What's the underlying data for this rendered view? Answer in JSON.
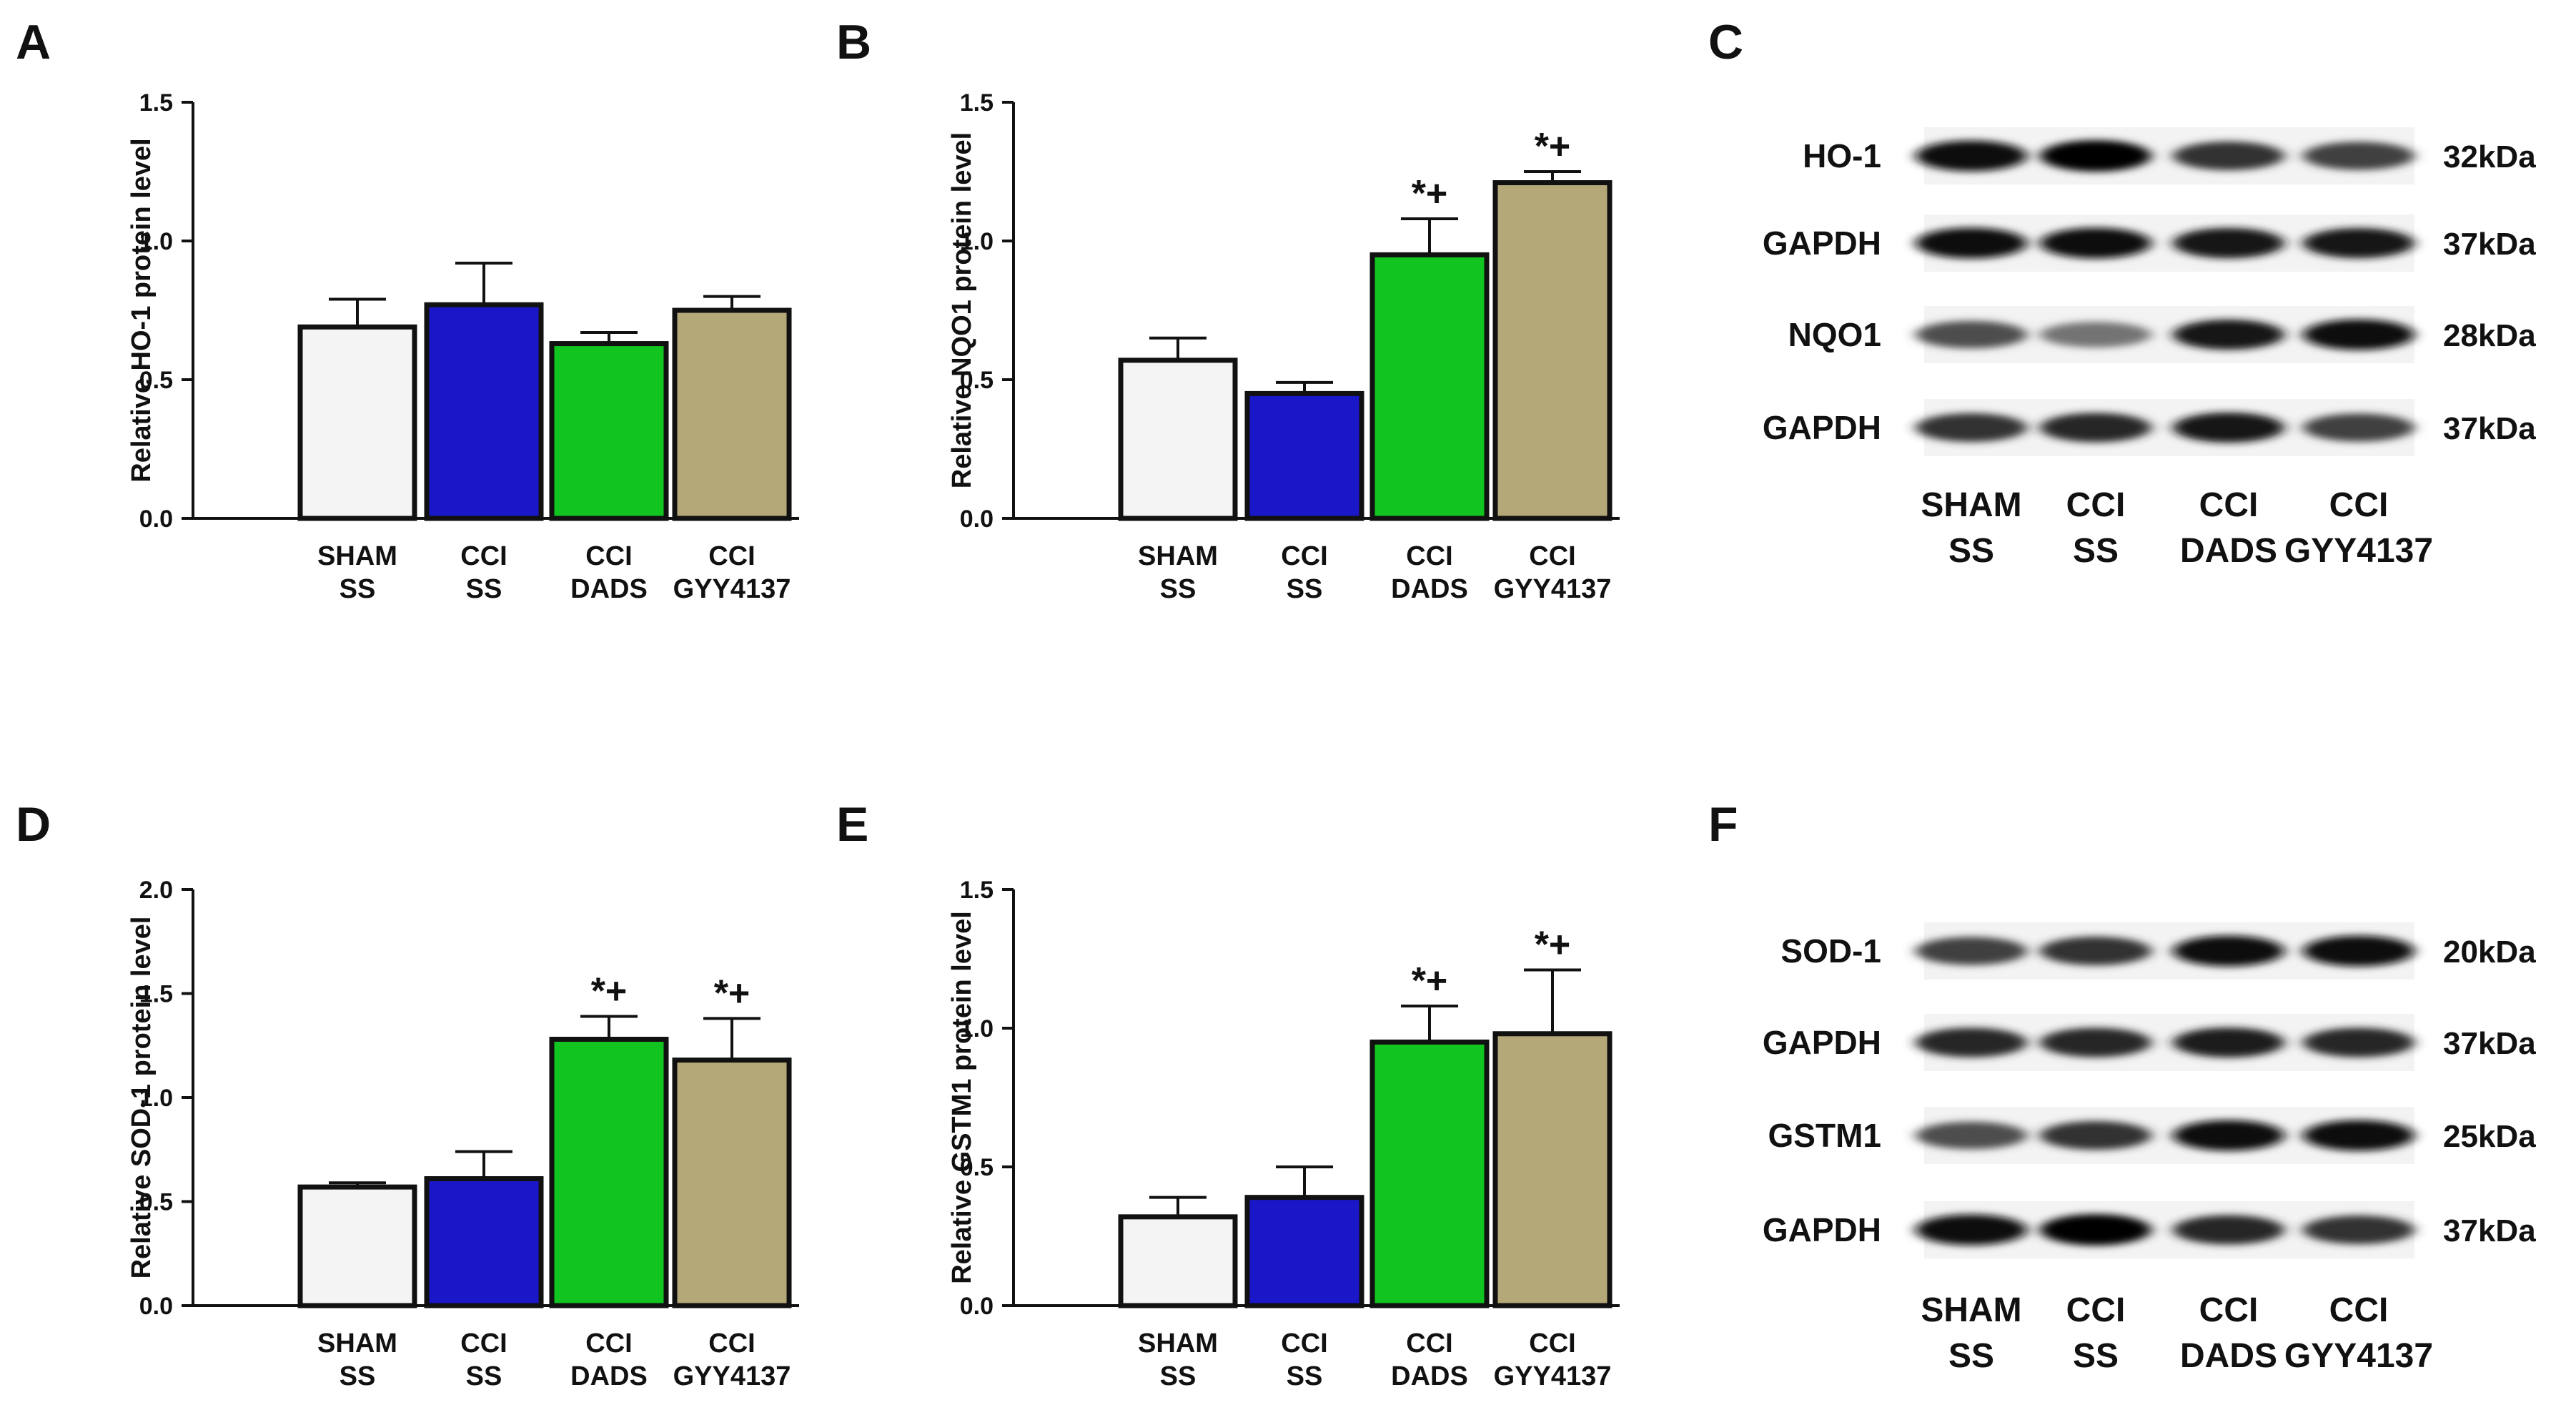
{
  "colors": {
    "SHAM SS": "#f4f4f4",
    "CCI SS": "#1a17c8",
    "CCI DADS": "#11c41f",
    "CCI GYY4137": "#b5a878",
    "outline": "#111111"
  },
  "group_labels": [
    [
      "SHAM",
      "SS"
    ],
    [
      "CCI",
      "SS"
    ],
    [
      "CCI",
      "DADS"
    ],
    [
      "CCI",
      "GYY4137"
    ]
  ],
  "chart_data": [
    {
      "panel": "A",
      "type": "bar",
      "ylabel": "Relative HO-1 protein level",
      "ylim": [
        0,
        1.5
      ],
      "yticks": [
        "0.0",
        "0.5",
        "1.0",
        "1.5"
      ],
      "categories": [
        "SHAM SS",
        "CCI SS",
        "CCI DADS",
        "CCI GYY4137"
      ],
      "values": [
        0.69,
        0.77,
        0.63,
        0.75
      ],
      "errors": [
        0.1,
        0.15,
        0.04,
        0.05
      ],
      "significance": [
        "",
        "",
        "",
        ""
      ]
    },
    {
      "panel": "B",
      "type": "bar",
      "ylabel": "Relative NQO1 protein level",
      "ylim": [
        0,
        1.5
      ],
      "yticks": [
        "0.0",
        "0.5",
        "1.0",
        "1.5"
      ],
      "categories": [
        "SHAM SS",
        "CCI SS",
        "CCI DADS",
        "CCI GYY4137"
      ],
      "values": [
        0.57,
        0.45,
        0.95,
        1.21
      ],
      "errors": [
        0.08,
        0.04,
        0.13,
        0.04
      ],
      "significance": [
        "",
        "",
        "*+",
        "*+"
      ]
    },
    {
      "panel": "D",
      "type": "bar",
      "ylabel": "Relative SOD-1 protein level",
      "ylim": [
        0,
        2.0
      ],
      "yticks": [
        "0.0",
        "0.5",
        "1.0",
        "1.5",
        "2.0"
      ],
      "categories": [
        "SHAM SS",
        "CCI SS",
        "CCI DADS",
        "CCI GYY4137"
      ],
      "values": [
        0.57,
        0.61,
        1.28,
        1.18
      ],
      "errors": [
        0.02,
        0.13,
        0.11,
        0.2
      ],
      "significance": [
        "",
        "",
        "*+",
        "*+"
      ]
    },
    {
      "panel": "E",
      "type": "bar",
      "ylabel": "Relative GSTM1 protein level",
      "ylim": [
        0,
        1.5
      ],
      "yticks": [
        "0.0",
        "0.5",
        "1.0",
        "1.5"
      ],
      "categories": [
        "SHAM SS",
        "CCI SS",
        "CCI DADS",
        "CCI GYY4137"
      ],
      "values": [
        0.32,
        0.39,
        0.95,
        0.98
      ],
      "errors": [
        0.07,
        0.11,
        0.13,
        0.23
      ],
      "significance": [
        "",
        "",
        "*+",
        "*+"
      ]
    }
  ],
  "blots": [
    {
      "panel": "C",
      "bands": [
        {
          "name": "HO-1",
          "kda": "32kDa",
          "intensity": [
            0.95,
            1.0,
            0.8,
            0.75
          ]
        },
        {
          "name": "GAPDH",
          "kda": "37kDa",
          "intensity": [
            0.95,
            0.95,
            0.92,
            0.9
          ]
        },
        {
          "name": "NQO1",
          "kda": "28kDa",
          "intensity": [
            0.7,
            0.55,
            0.9,
            0.95
          ]
        },
        {
          "name": "GAPDH",
          "kda": "37kDa",
          "intensity": [
            0.8,
            0.85,
            0.9,
            0.75
          ]
        }
      ]
    },
    {
      "panel": "F",
      "bands": [
        {
          "name": "SOD-1",
          "kda": "20kDa",
          "intensity": [
            0.75,
            0.8,
            0.95,
            0.95
          ]
        },
        {
          "name": "GAPDH",
          "kda": "37kDa",
          "intensity": [
            0.85,
            0.85,
            0.88,
            0.85
          ]
        },
        {
          "name": "GSTM1",
          "kda": "25kDa",
          "intensity": [
            0.7,
            0.8,
            0.95,
            0.95
          ]
        },
        {
          "name": "GAPDH",
          "kda": "37kDa",
          "intensity": [
            0.95,
            1.0,
            0.85,
            0.8
          ]
        }
      ]
    }
  ]
}
